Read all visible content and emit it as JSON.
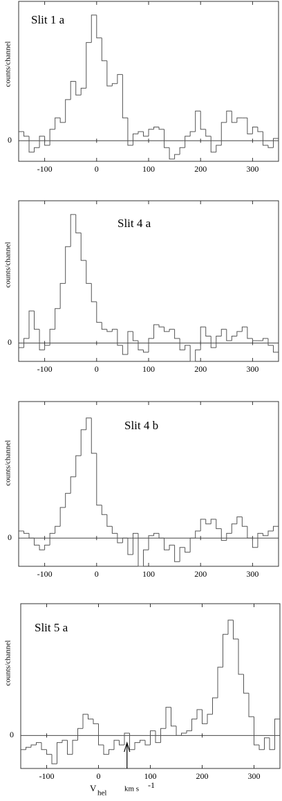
{
  "chart_data": [
    {
      "type": "histogram",
      "title": "Slit 1 a",
      "ylabel": "counts/channel",
      "bins": [
        -150,
        -140,
        -130,
        -120,
        -110,
        -100,
        -90,
        -80,
        -70,
        -60,
        -50,
        -40,
        -30,
        -20,
        -10,
        0,
        10,
        20,
        30,
        40,
        50,
        60,
        70,
        80,
        90,
        100,
        110,
        120,
        130,
        140,
        150,
        160,
        170,
        180,
        190,
        200,
        210,
        220,
        230,
        240,
        250,
        260,
        270,
        280,
        290,
        300,
        310,
        320,
        330,
        340,
        350
      ],
      "values": [
        0.4,
        0.2,
        -0.5,
        -0.3,
        0.2,
        -0.2,
        0.5,
        1.0,
        0.8,
        1.8,
        2.6,
        2.0,
        2.3,
        4.3,
        5.5,
        4.5,
        3.5,
        2.4,
        2.5,
        2.9,
        1.0,
        -0.2,
        0.3,
        0.4,
        0.2,
        0.5,
        0.6,
        0.5,
        -0.3,
        -0.8,
        -0.6,
        -0.3,
        0.2,
        0.4,
        1.3,
        0.5,
        0.2,
        -0.5,
        -0.2,
        0.8,
        1.3,
        0.8,
        1.0,
        1.0,
        0.3,
        0.6,
        0.4,
        -0.2,
        -0.3,
        0.1
      ],
      "xlim": [
        -150,
        350
      ],
      "xticks": [
        -100,
        0,
        100,
        200,
        300
      ],
      "ylim": [
        -0.9,
        6.1
      ],
      "yticks": [
        0
      ],
      "color": "#555555"
    },
    {
      "type": "histogram",
      "title": "Slit 4 a",
      "ylabel": "counts/channel",
      "bins": [
        -150,
        -140,
        -130,
        -120,
        -110,
        -100,
        -90,
        -80,
        -70,
        -60,
        -50,
        -40,
        -30,
        -20,
        -10,
        0,
        10,
        20,
        30,
        40,
        50,
        60,
        70,
        80,
        90,
        100,
        110,
        120,
        130,
        140,
        150,
        160,
        170,
        180,
        190,
        200,
        210,
        220,
        230,
        240,
        250,
        260,
        270,
        280,
        290,
        300,
        310,
        320,
        330,
        340,
        350
      ],
      "values": [
        -0.2,
        0.2,
        1.4,
        0.6,
        -0.3,
        -0.1,
        0.6,
        1.5,
        2.6,
        4.2,
        5.6,
        4.8,
        3.6,
        2.6,
        1.8,
        0.9,
        0.6,
        0.5,
        0.6,
        -0.1,
        -0.5,
        0.5,
        0.1,
        -0.3,
        -0.4,
        0.2,
        0.8,
        0.7,
        0.5,
        0.6,
        0.2,
        -0.3,
        -0.1,
        -0.8,
        -0.3,
        0.7,
        0.3,
        -0.2,
        0.3,
        0.6,
        0.1,
        0.3,
        0.5,
        0.7,
        0.2,
        0.1,
        0.1,
        0.2,
        -0.1,
        -0.4
      ],
      "xlim": [
        -150,
        350
      ],
      "xticks": [
        -100,
        0,
        100,
        200,
        300
      ],
      "ylim": [
        -0.8,
        6.2
      ],
      "yticks": [
        0
      ],
      "color": "#555555"
    },
    {
      "type": "histogram",
      "title": "Slit 4 b",
      "ylabel": "counts/channel",
      "bins": [
        -150,
        -140,
        -130,
        -120,
        -110,
        -100,
        -90,
        -80,
        -70,
        -60,
        -50,
        -40,
        -30,
        -20,
        -10,
        0,
        10,
        20,
        30,
        40,
        50,
        60,
        70,
        80,
        90,
        100,
        110,
        120,
        130,
        140,
        150,
        160,
        170,
        180,
        190,
        200,
        210,
        220,
        230,
        240,
        250,
        260,
        270,
        280,
        290,
        300,
        310,
        320,
        330,
        340,
        350
      ],
      "values": [
        0.3,
        0.2,
        0.0,
        -0.3,
        -0.5,
        -0.3,
        0.2,
        0.5,
        1.3,
        1.9,
        2.6,
        3.5,
        4.6,
        5.1,
        3.6,
        1.4,
        1.0,
        0.5,
        0.2,
        -0.2,
        0.0,
        -0.7,
        0.2,
        -1.2,
        -0.5,
        0.1,
        0.2,
        0.0,
        -0.5,
        -0.3,
        -1.0,
        -0.4,
        -0.6,
        0.0,
        0.3,
        0.8,
        0.6,
        0.8,
        0.4,
        -0.1,
        0.2,
        0.6,
        0.9,
        0.5,
        0.0,
        -0.4,
        0.2,
        0.1,
        0.3,
        0.5
      ],
      "xlim": [
        -150,
        350
      ],
      "xticks": [
        -100,
        0,
        100,
        200,
        300
      ],
      "ylim": [
        -1.2,
        5.8
      ],
      "yticks": [
        0
      ],
      "color": "#555555"
    },
    {
      "type": "histogram",
      "title": "Slit 5 a",
      "ylabel": "counts/channel",
      "xlabel": {
        "symbol": "V",
        "sub": "hel",
        "unit": "km s",
        "sup": "-1"
      },
      "arrow": {
        "x": 55
      },
      "bins": [
        -150,
        -140,
        -130,
        -120,
        -110,
        -100,
        -90,
        -80,
        -70,
        -60,
        -50,
        -40,
        -30,
        -20,
        -10,
        0,
        10,
        20,
        30,
        40,
        50,
        60,
        70,
        80,
        90,
        100,
        110,
        120,
        130,
        140,
        150,
        160,
        170,
        180,
        190,
        200,
        210,
        220,
        230,
        240,
        250,
        260,
        270,
        280,
        290,
        300,
        310,
        320,
        330,
        340,
        350
      ],
      "values": [
        -0.6,
        -0.5,
        -0.4,
        -0.3,
        -0.6,
        -0.8,
        -1.2,
        -0.3,
        -0.2,
        -0.8,
        -0.2,
        0.3,
        0.9,
        0.7,
        0.5,
        -0.4,
        -0.8,
        -0.6,
        -0.2,
        -0.4,
        0.1,
        -0.6,
        -0.3,
        -0.2,
        -0.4,
        0.2,
        -0.3,
        0.3,
        1.2,
        0.4,
        0.0,
        0.1,
        0.2,
        0.7,
        1.1,
        0.5,
        0.9,
        1.6,
        2.9,
        4.3,
        4.9,
        4.1,
        2.6,
        1.8,
        0.8,
        -0.4,
        -0.6,
        -0.1,
        -0.6,
        0.7
      ],
      "xlim": [
        -150,
        350
      ],
      "xticks": [
        -100,
        0,
        100,
        200,
        300
      ],
      "ylim": [
        -1.4,
        5.6
      ],
      "yticks": [
        0
      ],
      "color": "#555555"
    }
  ]
}
